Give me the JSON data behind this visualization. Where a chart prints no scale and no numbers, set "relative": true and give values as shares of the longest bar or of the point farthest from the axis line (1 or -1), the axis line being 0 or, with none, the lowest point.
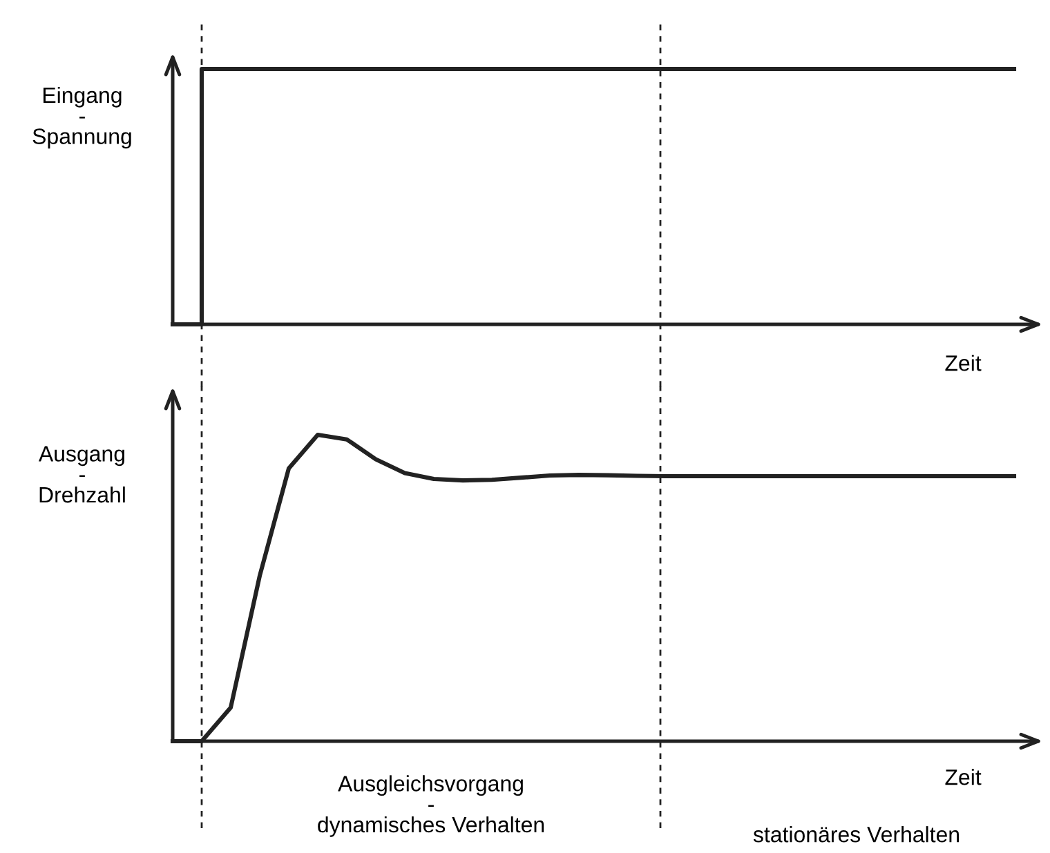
{
  "chart_data": [
    {
      "type": "step",
      "relative": true,
      "ylabel": "Eingang\n-\nSpannung",
      "xlabel": "Zeit",
      "tick_labels": false,
      "categories": [
        null,
        null,
        null,
        null,
        null,
        null,
        null,
        null,
        null,
        null,
        null,
        null,
        null,
        null,
        null,
        null,
        null,
        null,
        null,
        null,
        null,
        null,
        null,
        null,
        null,
        null,
        null,
        null,
        null,
        null
      ],
      "series": [
        {
          "color": "#222222",
          "values": [
            0,
            1,
            1,
            1,
            1,
            1,
            1,
            1,
            1,
            1,
            1,
            1,
            1,
            1,
            1,
            1,
            1,
            1,
            1,
            1,
            1,
            1,
            1,
            1,
            1,
            1,
            1,
            1,
            1,
            1
          ]
        }
      ]
    },
    {
      "type": "line",
      "relative": true,
      "ylabel": "Ausgang\n-\nDrehzahl",
      "xlabel": "Zeit",
      "tick_labels": false,
      "categories": [
        null,
        null,
        null,
        null,
        null,
        null,
        null,
        null,
        null,
        null,
        null,
        null,
        null,
        null,
        null,
        null,
        null,
        null,
        null,
        null,
        null,
        null,
        null,
        null,
        null,
        null,
        null,
        null,
        null,
        null
      ],
      "series": [
        {
          "color": "#222222",
          "values": [
            0,
            0,
            0.11,
            0.54,
            0.89,
            1.0,
            0.985,
            0.92,
            0.875,
            0.856,
            0.851,
            0.853,
            0.86,
            0.867,
            0.869,
            0.868,
            0.866,
            0.865,
            0.865,
            0.865,
            0.865,
            0.865,
            0.865,
            0.865,
            0.865,
            0.865,
            0.865,
            0.865,
            0.865,
            0.865
          ]
        }
      ],
      "annotations": [
        "Ausgleichsvorgang\n-\ndynamisches Verhalten",
        "stationäres Verhalten"
      ]
    }
  ]
}
